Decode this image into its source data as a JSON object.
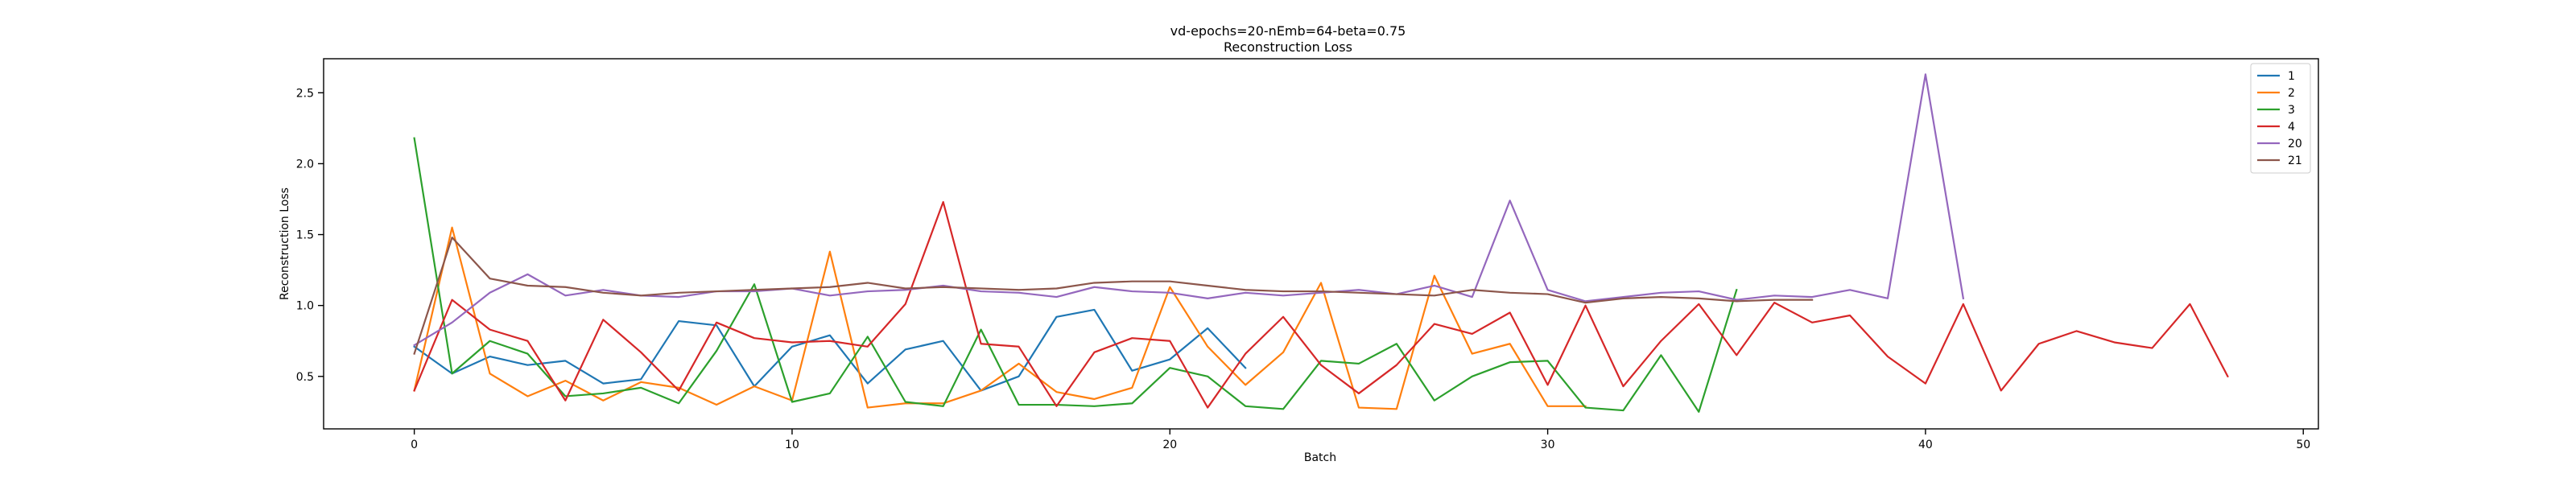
{
  "chart_data": {
    "type": "line",
    "title": "vd-epochs=20-nEmb=64-beta=0.75",
    "subtitle": "Reconstruction Loss",
    "xlabel": "Batch",
    "ylabel": "Reconstruction Loss",
    "xlim": [
      -2.4,
      50.4
    ],
    "ylim": [
      0.13,
      2.74
    ],
    "xticks": [
      0,
      10,
      20,
      30,
      40,
      50
    ],
    "xtick_labels": [
      "0",
      "10",
      "20",
      "30",
      "40",
      "50"
    ],
    "yticks": [
      0.5,
      1.0,
      1.5,
      2.0,
      2.5
    ],
    "ytick_labels": [
      "0.5",
      "1.0",
      "1.5",
      "2.0",
      "2.5"
    ],
    "grid": false,
    "legend_position": "top-right",
    "series": [
      {
        "name": "1",
        "color": "#1f77b4",
        "x": [
          0,
          1,
          2,
          3,
          4,
          5,
          6,
          7,
          8,
          9,
          10,
          11,
          12,
          13,
          14,
          15,
          16,
          17,
          18,
          19,
          20,
          21,
          22
        ],
        "values": [
          0.71,
          0.52,
          0.64,
          0.58,
          0.61,
          0.45,
          0.48,
          0.89,
          0.86,
          0.43,
          0.71,
          0.79,
          0.45,
          0.69,
          0.75,
          0.4,
          0.5,
          0.92,
          0.97,
          0.54,
          0.62,
          0.84,
          0.56
        ]
      },
      {
        "name": "2",
        "color": "#ff7f0e",
        "x": [
          0,
          1,
          2,
          3,
          4,
          5,
          6,
          7,
          8,
          9,
          10,
          11,
          12,
          13,
          14,
          15,
          16,
          17,
          18,
          19,
          20,
          21,
          22,
          23,
          24,
          25,
          26,
          27,
          28,
          29,
          30,
          31
        ],
        "values": [
          0.4,
          1.55,
          0.52,
          0.36,
          0.47,
          0.33,
          0.46,
          0.42,
          0.3,
          0.43,
          0.33,
          1.38,
          0.28,
          0.31,
          0.31,
          0.4,
          0.59,
          0.39,
          0.34,
          0.42,
          1.13,
          0.71,
          0.44,
          0.67,
          1.16,
          0.28,
          0.27,
          1.21,
          0.66,
          0.73,
          0.29,
          0.29
        ]
      },
      {
        "name": "3",
        "color": "#2ca02c",
        "x": [
          0,
          1,
          2,
          3,
          4,
          5,
          6,
          7,
          8,
          9,
          10,
          11,
          12,
          13,
          14,
          15,
          16,
          17,
          18,
          19,
          20,
          21,
          22,
          23,
          24,
          25,
          26,
          27,
          28,
          29,
          30,
          31,
          32,
          33,
          34,
          35
        ],
        "values": [
          2.18,
          0.52,
          0.75,
          0.66,
          0.36,
          0.38,
          0.42,
          0.31,
          0.68,
          1.15,
          0.32,
          0.38,
          0.78,
          0.32,
          0.29,
          0.83,
          0.3,
          0.3,
          0.29,
          0.31,
          0.56,
          0.5,
          0.29,
          0.27,
          0.61,
          0.59,
          0.73,
          0.33,
          0.5,
          0.6,
          0.61,
          0.28,
          0.26,
          0.65,
          0.25,
          1.11
        ]
      },
      {
        "name": "4",
        "color": "#d62728",
        "x": [
          0,
          1,
          2,
          3,
          4,
          5,
          6,
          7,
          8,
          9,
          10,
          11,
          12,
          13,
          14,
          15,
          16,
          17,
          18,
          19,
          20,
          21,
          22,
          23,
          24,
          25,
          26,
          27,
          28,
          29,
          30,
          31,
          32,
          33,
          34,
          35,
          36,
          37,
          38,
          39,
          40,
          41,
          42,
          43,
          44,
          45,
          46,
          47,
          48
        ],
        "values": [
          0.4,
          1.04,
          0.83,
          0.75,
          0.33,
          0.9,
          0.67,
          0.4,
          0.88,
          0.77,
          0.74,
          0.75,
          0.71,
          1.01,
          1.73,
          0.73,
          0.71,
          0.29,
          0.67,
          0.77,
          0.75,
          0.28,
          0.66,
          0.92,
          0.58,
          0.38,
          0.58,
          0.87,
          0.8,
          0.95,
          0.44,
          1.0,
          0.43,
          0.75,
          1.01,
          0.65,
          1.02,
          0.88,
          0.93,
          0.64,
          0.45,
          1.01,
          0.4,
          0.73,
          0.82,
          0.74,
          0.7,
          1.01,
          0.5
        ]
      },
      {
        "name": "20",
        "color": "#9467bd",
        "x": [
          0,
          1,
          2,
          3,
          4,
          5,
          6,
          7,
          8,
          9,
          10,
          11,
          12,
          13,
          14,
          15,
          16,
          17,
          18,
          19,
          20,
          21,
          22,
          23,
          24,
          25,
          26,
          27,
          28,
          29,
          30,
          31,
          32,
          33,
          34,
          35,
          36,
          37,
          38,
          39,
          40,
          41
        ],
        "values": [
          0.72,
          0.88,
          1.09,
          1.22,
          1.07,
          1.11,
          1.07,
          1.06,
          1.1,
          1.1,
          1.12,
          1.07,
          1.1,
          1.11,
          1.14,
          1.1,
          1.09,
          1.06,
          1.13,
          1.1,
          1.09,
          1.05,
          1.09,
          1.07,
          1.09,
          1.11,
          1.08,
          1.14,
          1.06,
          1.74,
          1.11,
          1.03,
          1.06,
          1.09,
          1.1,
          1.04,
          1.07,
          1.06,
          1.11,
          1.05,
          2.63,
          1.05
        ]
      },
      {
        "name": "21",
        "color": "#8c564b",
        "x": [
          0,
          1,
          2,
          3,
          4,
          5,
          6,
          7,
          8,
          9,
          10,
          11,
          12,
          13,
          14,
          15,
          16,
          17,
          18,
          19,
          20,
          21,
          22,
          23,
          24,
          25,
          26,
          27,
          28,
          29,
          30,
          31,
          32,
          33,
          34,
          35,
          36,
          37
        ],
        "values": [
          0.66,
          1.48,
          1.19,
          1.14,
          1.13,
          1.09,
          1.07,
          1.09,
          1.1,
          1.11,
          1.12,
          1.13,
          1.16,
          1.12,
          1.13,
          1.12,
          1.11,
          1.12,
          1.16,
          1.17,
          1.17,
          1.14,
          1.11,
          1.1,
          1.1,
          1.09,
          1.08,
          1.07,
          1.11,
          1.09,
          1.08,
          1.02,
          1.05,
          1.06,
          1.05,
          1.03,
          1.04,
          1.04
        ]
      }
    ]
  }
}
